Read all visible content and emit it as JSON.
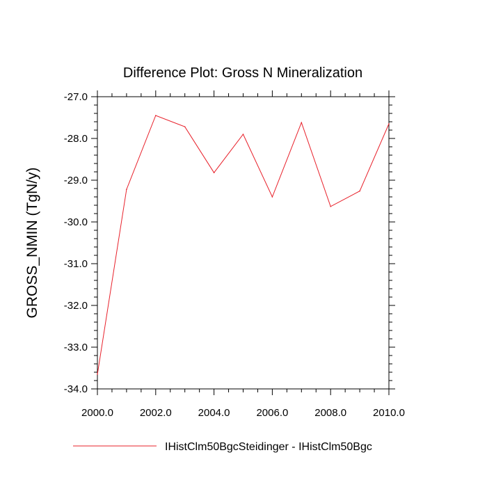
{
  "chart_data": {
    "type": "line",
    "title": "Difference Plot: Gross N Mineralization",
    "ylabel": "GROSS_NMIN  (TgN/y)",
    "xlabel": "",
    "xlim": [
      2000,
      2010
    ],
    "ylim": [
      -34,
      -27
    ],
    "x_ticks": [
      2000,
      2002,
      2004,
      2006,
      2008,
      2010
    ],
    "x_tick_labels": [
      "2000.0",
      "2002.0",
      "2004.0",
      "2006.0",
      "2008.0",
      "2010.0"
    ],
    "y_ticks": [
      -27,
      -28,
      -29,
      -30,
      -31,
      -32,
      -33,
      -34
    ],
    "y_tick_labels": [
      "-27.0",
      "-28.0",
      "-29.0",
      "-30.0",
      "-31.0",
      "-32.0",
      "-33.0",
      "-34.0"
    ],
    "grid": false,
    "legend": "bottom-left",
    "series": [
      {
        "name": "IHistClm50BgcSteidinger - IHistClm50Bgc",
        "color": "#e8202a",
        "x": [
          2000,
          2001,
          2002,
          2003,
          2004,
          2005,
          2006,
          2007,
          2008,
          2009,
          2010
        ],
        "y": [
          -33.65,
          -29.22,
          -27.45,
          -27.72,
          -28.82,
          -27.9,
          -29.4,
          -27.62,
          -29.63,
          -29.26,
          -27.65
        ]
      }
    ]
  }
}
